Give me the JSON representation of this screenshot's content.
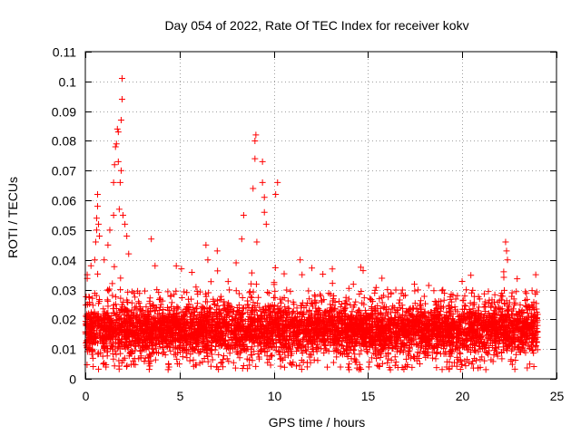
{
  "chart_data": {
    "type": "scatter",
    "title": "Day 054 of 2022, Rate Of TEC Index for receiver kokv",
    "xlabel": "GPS time / hours",
    "ylabel": "ROTI / TECUs",
    "xlim": [
      0,
      25
    ],
    "ylim": [
      0,
      0.11
    ],
    "x_ticks": [
      0,
      5,
      10,
      15,
      20,
      25
    ],
    "y_ticks": [
      0,
      0.01,
      0.02,
      0.03,
      0.04,
      0.05,
      0.06,
      0.07,
      0.08,
      0.09,
      0.1,
      0.11
    ],
    "x_tick_labels": [
      "0",
      "5",
      "10",
      "15",
      "20",
      "25"
    ],
    "y_tick_labels": [
      "0",
      "0.01",
      "0.02",
      "0.03",
      "0.04",
      "0.05",
      "0.06",
      "0.07",
      "0.08",
      "0.09",
      "0.1",
      "0.11"
    ],
    "grid": true,
    "marker": "+",
    "color": "#ff0000",
    "series": [
      {
        "name": "ROTI",
        "bulk_band": {
          "x_range": [
            0,
            24
          ],
          "typical_y_range": [
            0.005,
            0.025
          ],
          "upper_envelope": 0.03
        },
        "points": [
          {
            "x": 0.1,
            "y": 0.035
          },
          {
            "x": 0.3,
            "y": 0.038
          },
          {
            "x": 0.5,
            "y": 0.04
          },
          {
            "x": 0.55,
            "y": 0.046
          },
          {
            "x": 0.6,
            "y": 0.05
          },
          {
            "x": 0.6,
            "y": 0.054
          },
          {
            "x": 0.65,
            "y": 0.058
          },
          {
            "x": 0.65,
            "y": 0.062
          },
          {
            "x": 0.7,
            "y": 0.052
          },
          {
            "x": 0.75,
            "y": 0.048
          },
          {
            "x": 1.0,
            "y": 0.04
          },
          {
            "x": 1.2,
            "y": 0.045
          },
          {
            "x": 1.3,
            "y": 0.05
          },
          {
            "x": 1.5,
            "y": 0.055
          },
          {
            "x": 1.5,
            "y": 0.066
          },
          {
            "x": 1.55,
            "y": 0.072
          },
          {
            "x": 1.6,
            "y": 0.078
          },
          {
            "x": 1.65,
            "y": 0.079
          },
          {
            "x": 1.7,
            "y": 0.084
          },
          {
            "x": 1.75,
            "y": 0.083
          },
          {
            "x": 1.75,
            "y": 0.073
          },
          {
            "x": 1.8,
            "y": 0.057
          },
          {
            "x": 1.85,
            "y": 0.066
          },
          {
            "x": 1.9,
            "y": 0.07
          },
          {
            "x": 1.9,
            "y": 0.087
          },
          {
            "x": 1.95,
            "y": 0.094
          },
          {
            "x": 1.95,
            "y": 0.101
          },
          {
            "x": 2.0,
            "y": 0.055
          },
          {
            "x": 2.1,
            "y": 0.052
          },
          {
            "x": 2.2,
            "y": 0.048
          },
          {
            "x": 2.3,
            "y": 0.042
          },
          {
            "x": 3.5,
            "y": 0.047
          },
          {
            "x": 3.7,
            "y": 0.038
          },
          {
            "x": 5.1,
            "y": 0.037
          },
          {
            "x": 6.4,
            "y": 0.045
          },
          {
            "x": 6.5,
            "y": 0.04
          },
          {
            "x": 7.0,
            "y": 0.043
          },
          {
            "x": 8.0,
            "y": 0.039
          },
          {
            "x": 8.3,
            "y": 0.047
          },
          {
            "x": 8.4,
            "y": 0.055
          },
          {
            "x": 8.9,
            "y": 0.064
          },
          {
            "x": 9.0,
            "y": 0.074
          },
          {
            "x": 9.0,
            "y": 0.08
          },
          {
            "x": 9.05,
            "y": 0.082
          },
          {
            "x": 9.1,
            "y": 0.046
          },
          {
            "x": 9.4,
            "y": 0.073
          },
          {
            "x": 9.4,
            "y": 0.066
          },
          {
            "x": 9.5,
            "y": 0.061
          },
          {
            "x": 9.5,
            "y": 0.056
          },
          {
            "x": 9.6,
            "y": 0.052
          },
          {
            "x": 10.1,
            "y": 0.062
          },
          {
            "x": 10.2,
            "y": 0.066
          },
          {
            "x": 11.4,
            "y": 0.04
          },
          {
            "x": 11.5,
            "y": 0.035
          },
          {
            "x": 22.3,
            "y": 0.046
          },
          {
            "x": 22.35,
            "y": 0.043
          },
          {
            "x": 22.4,
            "y": 0.04
          },
          {
            "x": 22.2,
            "y": 0.036
          },
          {
            "x": 23.9,
            "y": 0.035
          }
        ]
      }
    ]
  }
}
